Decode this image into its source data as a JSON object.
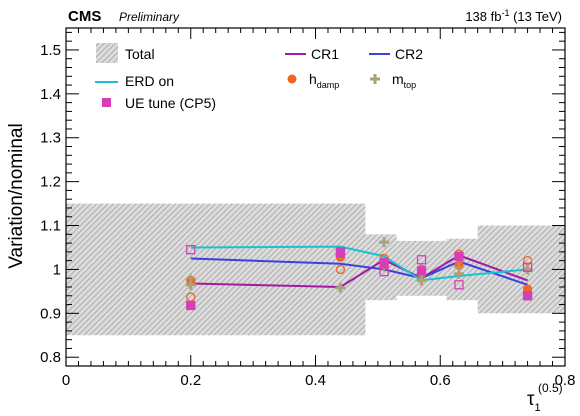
{
  "header": {
    "experiment": "CMS",
    "status": "Preliminary",
    "lumi_value": "138 fb",
    "lumi_exp": "-1",
    "lumi_energy": " (13 TeV)"
  },
  "chart_data": {
    "type": "line",
    "xlabel": "τ",
    "xlabel_sub": "1",
    "xlabel_sup": "(0.5)",
    "ylabel": "Variation/nominal",
    "xlim": [
      0,
      0.8
    ],
    "ylim": [
      0.78,
      1.55
    ],
    "xticks": [
      0,
      0.2,
      0.4,
      0.6,
      0.8
    ],
    "xtick_labels": [
      "0",
      "0.2",
      "0.4",
      "0.6",
      "0.8"
    ],
    "yticks": [
      0.8,
      0.9,
      1,
      1.1,
      1.2,
      1.3,
      1.4,
      1.5
    ],
    "ytick_labels": [
      "0.8",
      "0.9",
      "1",
      "1.1",
      "1.2",
      "1.3",
      "1.4",
      "1.5"
    ],
    "total_band": {
      "label": "Total",
      "bins": [
        {
          "xlow": 0.0,
          "xhigh": 0.48,
          "low": 0.85,
          "high": 1.15
        },
        {
          "xlow": 0.48,
          "xhigh": 0.53,
          "low": 0.93,
          "high": 1.08
        },
        {
          "xlow": 0.53,
          "xhigh": 0.61,
          "low": 0.94,
          "high": 1.065
        },
        {
          "xlow": 0.61,
          "xhigh": 0.66,
          "low": 0.93,
          "high": 1.07
        },
        {
          "xlow": 0.66,
          "xhigh": 0.8,
          "low": 0.9,
          "high": 1.1
        }
      ]
    },
    "bin_centers": [
      0.2,
      0.44,
      0.51,
      0.57,
      0.63,
      0.74
    ],
    "lines": [
      {
        "name": "CR1",
        "color": "#a21aa2",
        "values": [
          0.968,
          0.96,
          1.022,
          0.98,
          1.032,
          0.975
        ]
      },
      {
        "name": "CR2",
        "color": "#3f3fe0",
        "values": [
          1.025,
          1.013,
          1.0,
          0.98,
          1.018,
          0.965
        ]
      },
      {
        "name": "ERD on",
        "color": "#17c3d3",
        "values": [
          1.05,
          1.052,
          1.03,
          0.975,
          0.985,
          1.0
        ]
      }
    ],
    "markers": [
      {
        "name": "h",
        "sub": "damp",
        "style": "filled-circle",
        "color": "#f26522",
        "filled": [
          0.975,
          1.028,
          1.01,
          0.99,
          1.01,
          0.955
        ],
        "open": [
          0.937,
          1.0,
          1.025,
          1.0,
          1.035,
          1.02
        ]
      },
      {
        "name": "m",
        "sub": "top",
        "style": "plus",
        "color": "#aaa37a",
        "filled": [
          0.965,
          0.958,
          1.062,
          0.975,
          0.99,
          1.0
        ],
        "open": [
          0.98,
          1.035,
          1.005,
          0.99,
          1.005,
          0.94
        ]
      },
      {
        "name": "UE tune (CP5)",
        "style": "filled-square",
        "color": "#d63fb8",
        "filled": [
          0.918,
          1.037,
          1.016,
          0.997,
          1.03,
          0.94
        ],
        "open": [
          1.045,
          1.04,
          0.995,
          1.022,
          0.965,
          1.005
        ]
      }
    ]
  }
}
